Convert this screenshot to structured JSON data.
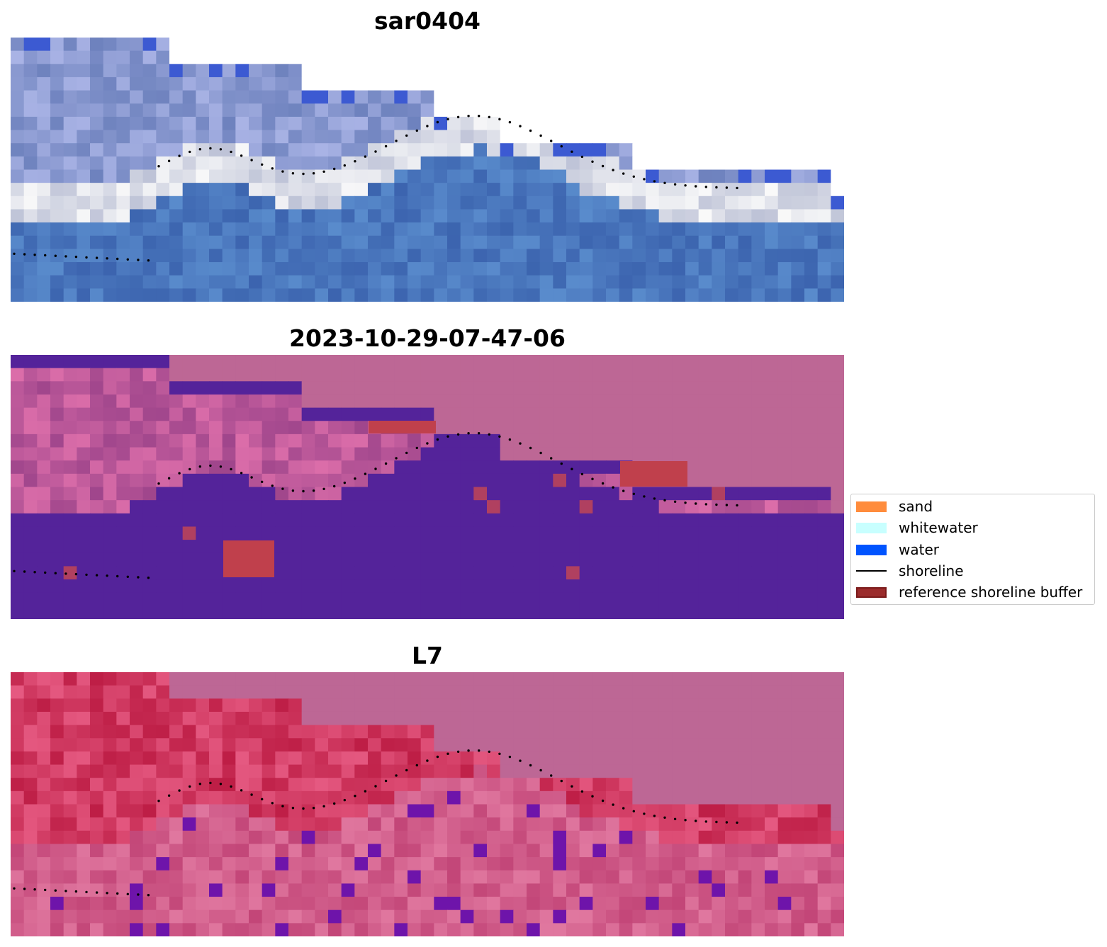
{
  "panels": [
    {
      "title": "sar0404",
      "kind": "rgb"
    },
    {
      "title": "2023-10-29-07-47-06",
      "kind": "classification"
    },
    {
      "title": "L7",
      "kind": "index"
    }
  ],
  "legend": {
    "items": [
      {
        "label": "sand",
        "color": "#ff8c3c",
        "type": "patch"
      },
      {
        "label": "whitewater",
        "color": "#c8ffff",
        "type": "patch"
      },
      {
        "label": "water",
        "color": "#0054ff",
        "type": "patch"
      },
      {
        "label": "shoreline",
        "color": "#000000",
        "type": "line"
      },
      {
        "label": "reference shoreline buffer",
        "color": "#9b2c2c",
        "type": "patch",
        "edge": "#7a1a1a"
      }
    ]
  },
  "colors": {
    "nodata_pink": "#bd6795",
    "water_purple": "#54239a",
    "shoreline_dots": "#000000"
  }
}
